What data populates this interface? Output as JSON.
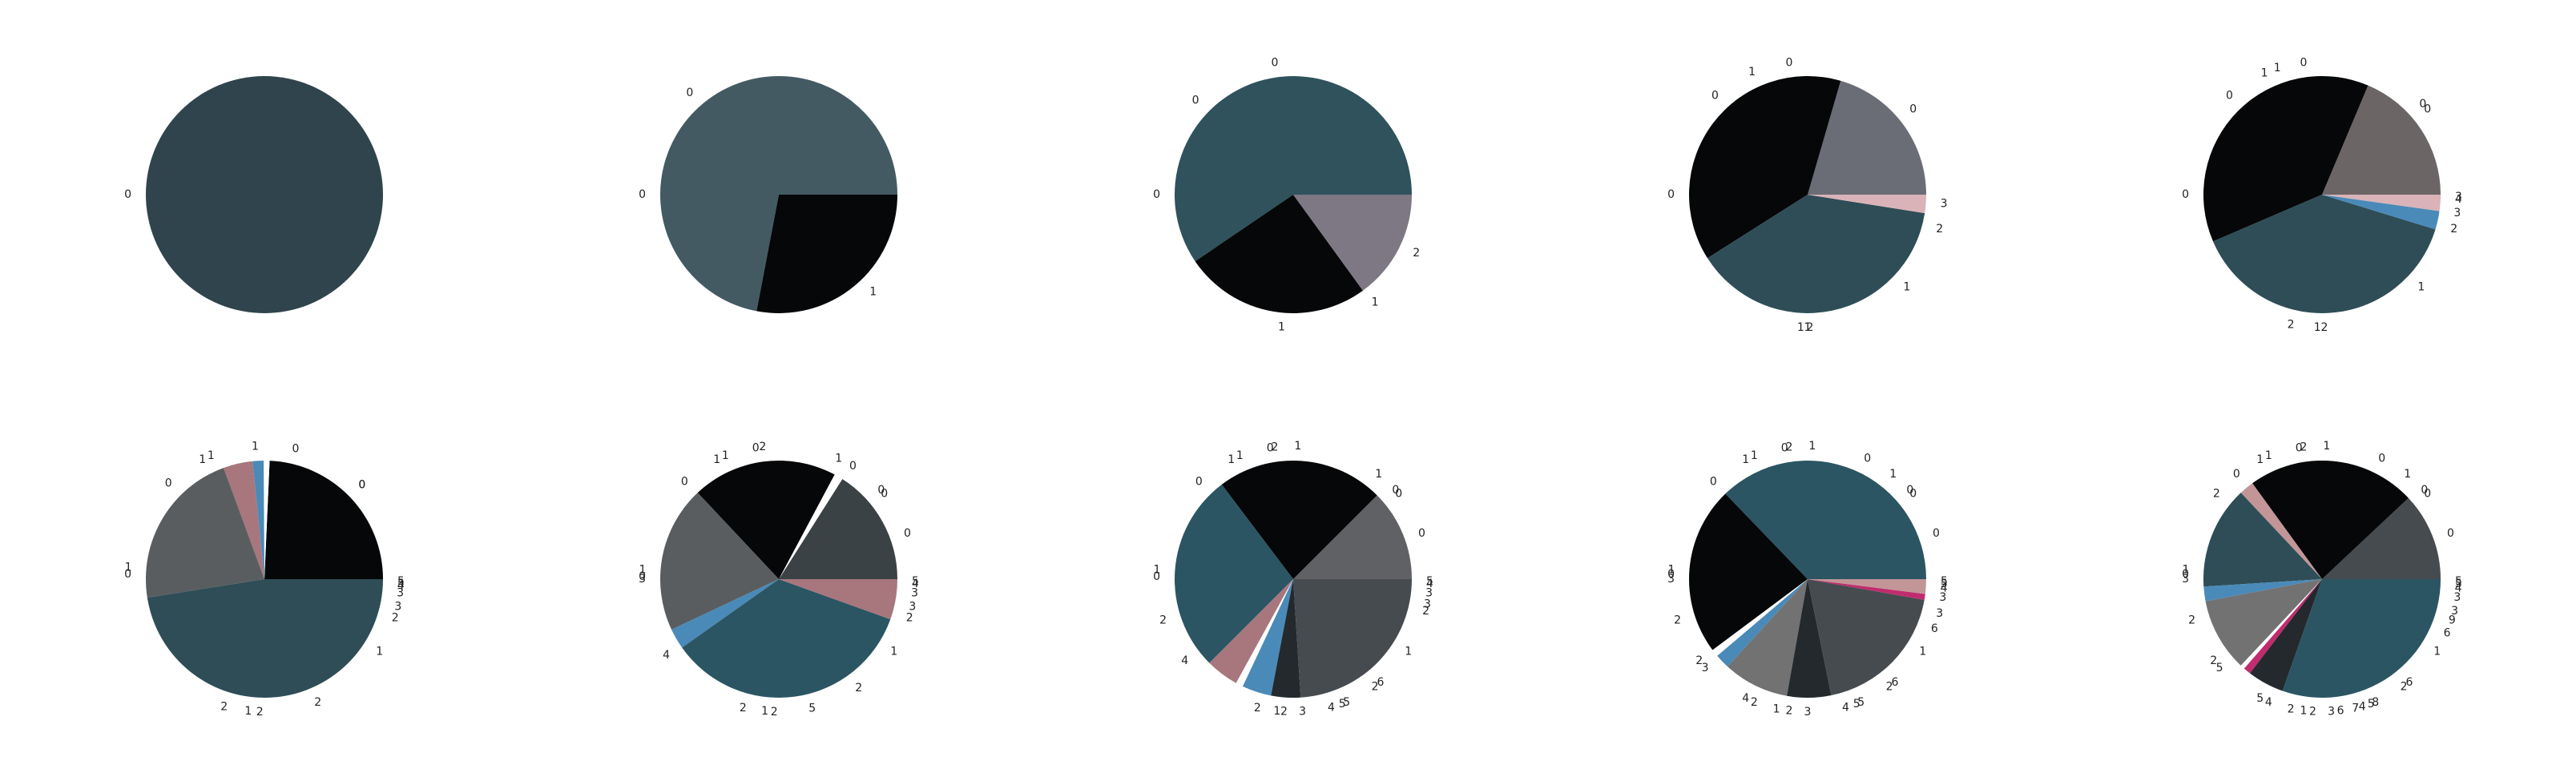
{
  "palette": {
    "slate": "#2f444c",
    "slate_light": "#435a63",
    "slate_teal": "#2c5563",
    "black": "#060708",
    "grey_purple": "#7d7883",
    "grey_blue": "#6a6d76",
    "grey_brown": "#6b6566",
    "grey_dark": "#5a5d60",
    "charcoal": "#3b4246",
    "charcoal_2": "#464b4f",
    "near_black_blue": "#23292d",
    "grey": "#727272",
    "pink_light": "#d9b3b8",
    "steel_blue": "#4a8ab8",
    "mauve": "#a8767d",
    "rose": "#c29597",
    "magenta": "#c02c6e",
    "white": "#ffffff"
  },
  "chart_data": [
    {
      "type": "pie",
      "title": "",
      "slices": [
        {
          "value": 1,
          "color": "#2f444c"
        }
      ],
      "labels": [
        {
          "text": "0",
          "angle": 180
        }
      ]
    },
    {
      "type": "pie",
      "title": "",
      "slices": [
        {
          "value": 0.72,
          "color": "#435a63"
        },
        {
          "value": 0.28,
          "color": "#060708"
        }
      ],
      "labels": [
        {
          "text": "0",
          "angle": 130
        },
        {
          "text": "0",
          "angle": 180
        },
        {
          "text": "1",
          "angle": 313
        }
      ]
    },
    {
      "type": "pie",
      "title": "",
      "slices": [
        {
          "value": 0.595,
          "color": "#2f525c"
        },
        {
          "value": 0.255,
          "color": "#060708"
        },
        {
          "value": 0.15,
          "color": "#7d7883"
        }
      ],
      "labels": [
        {
          "text": "0",
          "angle": 98
        },
        {
          "text": "0",
          "angle": 135
        },
        {
          "text": "0",
          "angle": 180
        },
        {
          "text": "1",
          "angle": 265
        },
        {
          "text": "1",
          "angle": 306
        },
        {
          "text": "2",
          "angle": 334
        }
      ]
    },
    {
      "type": "pie",
      "title": "",
      "slices": [
        {
          "value": 0.205,
          "color": "#6a6d76"
        },
        {
          "value": 0.385,
          "color": "#060708"
        },
        {
          "value": 0.385,
          "color": "#2e4d57"
        },
        {
          "value": 0.025,
          "color": "#d9b3b8"
        }
      ],
      "labels": [
        {
          "text": "0",
          "angle": 40
        },
        {
          "text": "0",
          "angle": 98
        },
        {
          "text": "1",
          "angle": 113
        },
        {
          "text": "0",
          "angle": 132
        },
        {
          "text": "0",
          "angle": 180
        },
        {
          "text": "1",
          "angle": 267
        },
        {
          "text": "1",
          "angle": 270
        },
        {
          "text": "2",
          "angle": 271
        },
        {
          "text": "1",
          "angle": 316
        },
        {
          "text": "2",
          "angle": 345
        },
        {
          "text": "3",
          "angle": 356
        }
      ]
    },
    {
      "type": "pie",
      "title": "",
      "slices": [
        {
          "value": 0.185,
          "color": "#6b6566"
        },
        {
          "value": 0.375,
          "color": "#060708"
        },
        {
          "value": 0.385,
          "color": "#2e4d57"
        },
        {
          "value": 0.025,
          "color": "#4a8ab8"
        },
        {
          "value": 0.022,
          "color": "#d9b3b8"
        }
      ],
      "labels": [
        {
          "text": "0",
          "angle": 40
        },
        {
          "text": "0",
          "angle": 43
        },
        {
          "text": "0",
          "angle": 98
        },
        {
          "text": "1",
          "angle": 108
        },
        {
          "text": "1",
          "angle": 114
        },
        {
          "text": "0",
          "angle": 132
        },
        {
          "text": "0",
          "angle": 180
        },
        {
          "text": "2",
          "angle": 258
        },
        {
          "text": "1",
          "angle": 268
        },
        {
          "text": "2",
          "angle": 271
        },
        {
          "text": "1",
          "angle": 316
        },
        {
          "text": "2",
          "angle": 345
        },
        {
          "text": "3",
          "angle": 352
        },
        {
          "text": "4",
          "angle": 358
        },
        {
          "text": "3",
          "angle": 359
        }
      ]
    },
    {
      "type": "pie",
      "title": "",
      "slices": [
        {
          "value": 0.243,
          "color": "#060708"
        },
        {
          "value": 0.008,
          "color": "#ffffff"
        },
        {
          "value": 0.015,
          "color": "#4a8ab8"
        },
        {
          "value": 0.04,
          "color": "#a8767d"
        },
        {
          "value": 0.219,
          "color": "#5a5d60"
        },
        {
          "value": 0.475,
          "color": "#2e4d57"
        }
      ],
      "labels": [
        {
          "text": "0",
          "angle": 45
        },
        {
          "text": "0",
          "angle": 45
        },
        {
          "text": "0",
          "angle": 78
        },
        {
          "text": "1",
          "angle": 94
        },
        {
          "text": "1",
          "angle": 112
        },
        {
          "text": "1",
          "angle": 116
        },
        {
          "text": "0",
          "angle": 134
        },
        {
          "text": "1",
          "angle": 175
        },
        {
          "text": "0",
          "angle": 178
        },
        {
          "text": "2",
          "angle": 254
        },
        {
          "text": "1",
          "angle": 263
        },
        {
          "text": "2",
          "angle": 268
        },
        {
          "text": "2",
          "angle": 292
        },
        {
          "text": "1",
          "angle": 327
        },
        {
          "text": "2",
          "angle": 343
        },
        {
          "text": "3",
          "angle": 348
        },
        {
          "text": "3",
          "angle": 354
        },
        {
          "text": "4",
          "angle": 357
        },
        {
          "text": "5",
          "angle": 358
        },
        {
          "text": "5",
          "angle": 359
        }
      ]
    },
    {
      "type": "pie",
      "title": "",
      "slices": [
        {
          "value": 0.16,
          "color": "#3b4246"
        },
        {
          "value": 0.012,
          "color": "#ffffff"
        },
        {
          "value": 0.198,
          "color": "#060708"
        },
        {
          "value": 0.2,
          "color": "#5a5d60"
        },
        {
          "value": 0.028,
          "color": "#4a8ab8"
        },
        {
          "value": 0.347,
          "color": "#2b5563"
        },
        {
          "value": 0.055,
          "color": "#a8767d"
        }
      ],
      "labels": [
        {
          "text": "0",
          "angle": 20
        },
        {
          "text": "0",
          "angle": 40
        },
        {
          "text": "0",
          "angle": 42
        },
        {
          "text": "0",
          "angle": 58
        },
        {
          "text": "1",
          "angle": 65
        },
        {
          "text": "2",
          "angle": 97
        },
        {
          "text": "0",
          "angle": 100
        },
        {
          "text": "1",
          "angle": 112
        },
        {
          "text": "1",
          "angle": 116
        },
        {
          "text": "0",
          "angle": 133
        },
        {
          "text": "1",
          "angle": 176
        },
        {
          "text": "0",
          "angle": 179
        },
        {
          "text": "3",
          "angle": 180
        },
        {
          "text": "4",
          "angle": 215
        },
        {
          "text": "2",
          "angle": 256
        },
        {
          "text": "1",
          "angle": 264
        },
        {
          "text": "2",
          "angle": 268
        },
        {
          "text": "5",
          "angle": 283
        },
        {
          "text": "2",
          "angle": 305
        },
        {
          "text": "1",
          "angle": 327
        },
        {
          "text": "2",
          "angle": 343
        },
        {
          "text": "3",
          "angle": 348
        },
        {
          "text": "3",
          "angle": 354
        },
        {
          "text": "4",
          "angle": 358
        },
        {
          "text": "5",
          "angle": 359
        }
      ]
    },
    {
      "type": "pie",
      "title": "",
      "slices": [
        {
          "value": 0.125,
          "color": "#5f6164"
        },
        {
          "value": 0.228,
          "color": "#060708"
        },
        {
          "value": 0.272,
          "color": "#2b5563"
        },
        {
          "value": 0.045,
          "color": "#a8767d"
        },
        {
          "value": 0.01,
          "color": "#ffffff"
        },
        {
          "value": 0.04,
          "color": "#4a8ab8"
        },
        {
          "value": 0.04,
          "color": "#23292d"
        },
        {
          "value": 0.24,
          "color": "#464b4f"
        }
      ],
      "labels": [
        {
          "text": "0",
          "angle": 20
        },
        {
          "text": "0",
          "angle": 40
        },
        {
          "text": "0",
          "angle": 42
        },
        {
          "text": "1",
          "angle": 52
        },
        {
          "text": "1",
          "angle": 88
        },
        {
          "text": "2",
          "angle": 98
        },
        {
          "text": "0",
          "angle": 100
        },
        {
          "text": "1",
          "angle": 112
        },
        {
          "text": "1",
          "angle": 116
        },
        {
          "text": "0",
          "angle": 133
        },
        {
          "text": "1",
          "angle": 176
        },
        {
          "text": "0",
          "angle": 179
        },
        {
          "text": "2",
          "angle": 198
        },
        {
          "text": "4",
          "angle": 218
        },
        {
          "text": "2",
          "angle": 256
        },
        {
          "text": "1",
          "angle": 263
        },
        {
          "text": "2",
          "angle": 266
        },
        {
          "text": "3",
          "angle": 274
        },
        {
          "text": "4",
          "angle": 285
        },
        {
          "text": "5",
          "angle": 290
        },
        {
          "text": "5",
          "angle": 292
        },
        {
          "text": "2",
          "angle": 306
        },
        {
          "text": "6",
          "angle": 309
        },
        {
          "text": "1",
          "angle": 327
        },
        {
          "text": "2",
          "angle": 346
        },
        {
          "text": "3",
          "angle": 349
        },
        {
          "text": "3",
          "angle": 354
        },
        {
          "text": "4",
          "angle": 358
        },
        {
          "text": "5",
          "angle": 359
        }
      ]
    },
    {
      "type": "pie",
      "title": "",
      "slices": [
        {
          "value": 0.372,
          "color": "#2b5563"
        },
        {
          "value": 0.23,
          "color": "#060708"
        },
        {
          "value": 0.01,
          "color": "#ffffff"
        },
        {
          "value": 0.02,
          "color": "#4a8ab8"
        },
        {
          "value": 0.09,
          "color": "#727272"
        },
        {
          "value": 0.06,
          "color": "#23292d"
        },
        {
          "value": 0.19,
          "color": "#464b4f"
        },
        {
          "value": 0.008,
          "color": "#c02c6e"
        },
        {
          "value": 0.02,
          "color": "#c29597"
        }
      ],
      "labels": [
        {
          "text": "0",
          "angle": 20
        },
        {
          "text": "0",
          "angle": 40
        },
        {
          "text": "0",
          "angle": 42
        },
        {
          "text": "1",
          "angle": 52
        },
        {
          "text": "0",
          "angle": 65
        },
        {
          "text": "1",
          "angle": 88
        },
        {
          "text": "2",
          "angle": 98
        },
        {
          "text": "0",
          "angle": 100
        },
        {
          "text": "1",
          "angle": 112
        },
        {
          "text": "1",
          "angle": 116
        },
        {
          "text": "0",
          "angle": 133
        },
        {
          "text": "1",
          "angle": 176
        },
        {
          "text": "0",
          "angle": 178
        },
        {
          "text": "3",
          "angle": 180
        },
        {
          "text": "2",
          "angle": 198
        },
        {
          "text": "2",
          "angle": 218
        },
        {
          "text": "3",
          "angle": 222
        },
        {
          "text": "4",
          "angle": 244
        },
        {
          "text": "2",
          "angle": 248
        },
        {
          "text": "1",
          "angle": 258
        },
        {
          "text": "2",
          "angle": 262
        },
        {
          "text": "3",
          "angle": 270
        },
        {
          "text": "4",
          "angle": 285
        },
        {
          "text": "5",
          "angle": 290
        },
        {
          "text": "5",
          "angle": 292
        },
        {
          "text": "2",
          "angle": 306
        },
        {
          "text": "6",
          "angle": 309
        },
        {
          "text": "1",
          "angle": 327
        },
        {
          "text": "6",
          "angle": 338
        },
        {
          "text": "3",
          "angle": 345
        },
        {
          "text": "3",
          "angle": 352
        },
        {
          "text": "4",
          "angle": 356
        },
        {
          "text": "5",
          "angle": 358
        },
        {
          "text": "5",
          "angle": 359
        }
      ]
    },
    {
      "type": "pie",
      "title": "",
      "slices": [
        {
          "value": 0.12,
          "color": "#464b4f"
        },
        {
          "value": 0.23,
          "color": "#060708"
        },
        {
          "value": 0.02,
          "color": "#c29597"
        },
        {
          "value": 0.14,
          "color": "#2e4d57"
        },
        {
          "value": 0.02,
          "color": "#4a8ab8"
        },
        {
          "value": 0.1,
          "color": "#727272"
        },
        {
          "value": 0.006,
          "color": "#ffffff"
        },
        {
          "value": 0.01,
          "color": "#c02c6e"
        },
        {
          "value": 0.05,
          "color": "#23292d"
        },
        {
          "value": 0.304,
          "color": "#2b5563"
        }
      ],
      "labels": [
        {
          "text": "0",
          "angle": 20
        },
        {
          "text": "0",
          "angle": 40
        },
        {
          "text": "0",
          "angle": 42
        },
        {
          "text": "1",
          "angle": 52
        },
        {
          "text": "0",
          "angle": 65
        },
        {
          "text": "1",
          "angle": 88
        },
        {
          "text": "2",
          "angle": 98
        },
        {
          "text": "0",
          "angle": 100
        },
        {
          "text": "1",
          "angle": 112
        },
        {
          "text": "1",
          "angle": 116
        },
        {
          "text": "0",
          "angle": 128
        },
        {
          "text": "2",
          "angle": 140
        },
        {
          "text": "1",
          "angle": 176
        },
        {
          "text": "0",
          "angle": 178
        },
        {
          "text": "3",
          "angle": 180
        },
        {
          "text": "2",
          "angle": 198
        },
        {
          "text": "2",
          "angle": 218
        },
        {
          "text": "5",
          "angle": 222
        },
        {
          "text": "5",
          "angle": 244
        },
        {
          "text": "4",
          "angle": 248
        },
        {
          "text": "2",
          "angle": 258
        },
        {
          "text": "1",
          "angle": 262
        },
        {
          "text": "2",
          "angle": 266
        },
        {
          "text": "3",
          "angle": 274
        },
        {
          "text": "6",
          "angle": 278
        },
        {
          "text": "7",
          "angle": 283
        },
        {
          "text": "4",
          "angle": 286
        },
        {
          "text": "5",
          "angle": 290
        },
        {
          "text": "8",
          "angle": 292
        },
        {
          "text": "2",
          "angle": 306
        },
        {
          "text": "6",
          "angle": 309
        },
        {
          "text": "1",
          "angle": 327
        },
        {
          "text": "6",
          "angle": 336
        },
        {
          "text": "9",
          "angle": 342
        },
        {
          "text": "3",
          "angle": 346
        },
        {
          "text": "3",
          "angle": 352
        },
        {
          "text": "4",
          "angle": 356
        },
        {
          "text": "5",
          "angle": 358
        },
        {
          "text": "5",
          "angle": 359
        }
      ]
    }
  ]
}
